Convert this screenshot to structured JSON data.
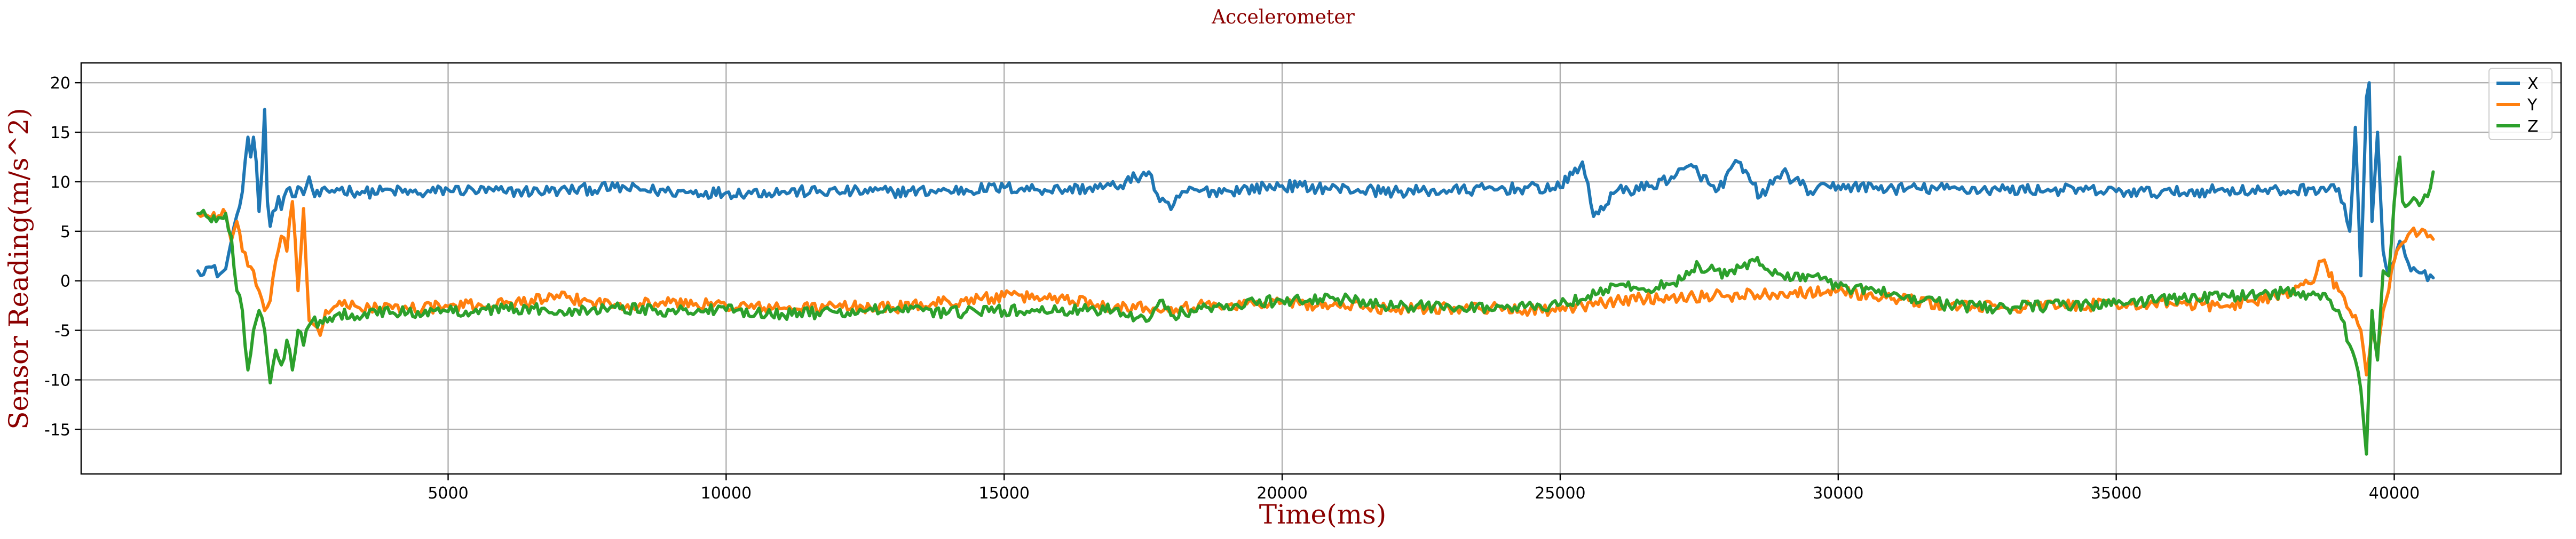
{
  "chart_data": {
    "type": "line",
    "title": "Accelerometer",
    "xlabel": "Time(ms)",
    "ylabel": "Sensor Reading(m/s^2)",
    "xlim": [
      -1600,
      43000
    ],
    "ylim": [
      -19.5,
      22
    ],
    "xticks": [
      5000,
      10000,
      15000,
      20000,
      25000,
      30000,
      35000,
      40000
    ],
    "yticks": [
      -15,
      -10,
      -5,
      0,
      5,
      10,
      15,
      20
    ],
    "grid": true,
    "legend_position": "top-right",
    "colors": {
      "X": "#1f77b4",
      "Y": "#ff7f0e",
      "Z": "#2ca02c"
    },
    "series": [
      {
        "name": "X",
        "color": "#1f77b4",
        "points": [
          [
            500,
            1.0
          ],
          [
            700,
            1.4
          ],
          [
            900,
            0.7
          ],
          [
            1000,
            1.2
          ],
          [
            1100,
            4.0
          ],
          [
            1150,
            5.5
          ],
          [
            1250,
            7.5
          ],
          [
            1300,
            9.0
          ],
          [
            1400,
            14.5
          ],
          [
            1450,
            12.5
          ],
          [
            1500,
            14.5
          ],
          [
            1550,
            12.0
          ],
          [
            1600,
            7.0
          ],
          [
            1650,
            11.0
          ],
          [
            1700,
            17.3
          ],
          [
            1750,
            8.0
          ],
          [
            1800,
            5.5
          ],
          [
            1850,
            7.0
          ],
          [
            1950,
            8.5
          ],
          [
            2000,
            7.2
          ],
          [
            2100,
            9.2
          ],
          [
            2200,
            8.5
          ],
          [
            2300,
            9.5
          ],
          [
            2400,
            8.7
          ],
          [
            2500,
            10.5
          ],
          [
            2600,
            8.5
          ],
          [
            3000,
            9.3
          ],
          [
            3500,
            8.9
          ],
          [
            4000,
            9.1
          ],
          [
            4500,
            8.8
          ],
          [
            5000,
            9.2
          ],
          [
            6000,
            9.0
          ],
          [
            7000,
            9.1
          ],
          [
            8000,
            9.4
          ],
          [
            9000,
            9.0
          ],
          [
            10000,
            8.9
          ],
          [
            11000,
            9.0
          ],
          [
            12000,
            9.0
          ],
          [
            13000,
            9.0
          ],
          [
            14000,
            9.1
          ],
          [
            15000,
            9.4
          ],
          [
            16000,
            9.2
          ],
          [
            17000,
            9.5
          ],
          [
            17600,
            11.0
          ],
          [
            17800,
            8.0
          ],
          [
            18000,
            7.2
          ],
          [
            18200,
            9.0
          ],
          [
            19000,
            9.1
          ],
          [
            20000,
            9.6
          ],
          [
            21000,
            9.3
          ],
          [
            22000,
            9.0
          ],
          [
            23000,
            9.1
          ],
          [
            24000,
            9.3
          ],
          [
            25000,
            9.4
          ],
          [
            25400,
            12.0
          ],
          [
            25600,
            6.5
          ],
          [
            26000,
            9.0
          ],
          [
            26600,
            9.5
          ],
          [
            27000,
            10.5
          ],
          [
            27400,
            11.5
          ],
          [
            27800,
            9.0
          ],
          [
            28200,
            12.0
          ],
          [
            28600,
            8.5
          ],
          [
            29000,
            11.0
          ],
          [
            29500,
            9.0
          ],
          [
            30000,
            9.6
          ],
          [
            31000,
            9.3
          ],
          [
            32000,
            9.3
          ],
          [
            33000,
            9.2
          ],
          [
            34000,
            9.2
          ],
          [
            35000,
            9.0
          ],
          [
            36000,
            8.9
          ],
          [
            37000,
            9.2
          ],
          [
            38000,
            9.0
          ],
          [
            38500,
            9.3
          ],
          [
            39000,
            9.3
          ],
          [
            39200,
            5.0
          ],
          [
            39300,
            15.5
          ],
          [
            39400,
            0.5
          ],
          [
            39500,
            18.5
          ],
          [
            39550,
            20.0
          ],
          [
            39600,
            6.0
          ],
          [
            39700,
            15.0
          ],
          [
            39800,
            3.0
          ],
          [
            39900,
            0.5
          ],
          [
            40000,
            2.0
          ],
          [
            40100,
            4.0
          ],
          [
            40200,
            2.5
          ],
          [
            40300,
            1.0
          ],
          [
            40400,
            1.0
          ],
          [
            40500,
            0.8
          ],
          [
            40700,
            0.3
          ]
        ]
      },
      {
        "name": "Y",
        "color": "#ff7f0e",
        "points": [
          [
            500,
            6.8
          ],
          [
            700,
            6.5
          ],
          [
            1000,
            6.8
          ],
          [
            1100,
            4.0
          ],
          [
            1200,
            6.0
          ],
          [
            1300,
            3.0
          ],
          [
            1400,
            1.5
          ],
          [
            1500,
            1.0
          ],
          [
            1600,
            -1.0
          ],
          [
            1700,
            -3.0
          ],
          [
            1800,
            -2.0
          ],
          [
            1900,
            2.0
          ],
          [
            2000,
            4.5
          ],
          [
            2100,
            3.0
          ],
          [
            2200,
            8.0
          ],
          [
            2300,
            -1.0
          ],
          [
            2400,
            7.3
          ],
          [
            2500,
            -4.0
          ],
          [
            2600,
            -4.5
          ],
          [
            2700,
            -5.5
          ],
          [
            2800,
            -3.0
          ],
          [
            3000,
            -2.5
          ],
          [
            4000,
            -2.8
          ],
          [
            5000,
            -2.6
          ],
          [
            6000,
            -2.3
          ],
          [
            7000,
            -1.7
          ],
          [
            8000,
            -2.4
          ],
          [
            9000,
            -2.2
          ],
          [
            10000,
            -2.5
          ],
          [
            11000,
            -2.8
          ],
          [
            12000,
            -2.6
          ],
          [
            13000,
            -2.7
          ],
          [
            14000,
            -2.1
          ],
          [
            15000,
            -1.6
          ],
          [
            16000,
            -1.7
          ],
          [
            17000,
            -2.6
          ],
          [
            18000,
            -2.7
          ],
          [
            19000,
            -2.4
          ],
          [
            20000,
            -2.2
          ],
          [
            21000,
            -2.5
          ],
          [
            22000,
            -2.8
          ],
          [
            23000,
            -2.7
          ],
          [
            24000,
            -2.8
          ],
          [
            25000,
            -3.0
          ],
          [
            26000,
            -2.0
          ],
          [
            27000,
            -1.6
          ],
          [
            28000,
            -1.5
          ],
          [
            29000,
            -1.2
          ],
          [
            30000,
            -1.0
          ],
          [
            31000,
            -1.8
          ],
          [
            32000,
            -2.5
          ],
          [
            33000,
            -2.7
          ],
          [
            34000,
            -2.5
          ],
          [
            35000,
            -2.4
          ],
          [
            36000,
            -2.3
          ],
          [
            37000,
            -2.5
          ],
          [
            38000,
            -1.3
          ],
          [
            38500,
            -0.3
          ],
          [
            38700,
            2.0
          ],
          [
            39000,
            -1.0
          ],
          [
            39200,
            -3.0
          ],
          [
            39300,
            -3.5
          ],
          [
            39400,
            -5.0
          ],
          [
            39500,
            -9.5
          ],
          [
            39600,
            -5.0
          ],
          [
            39700,
            -7.5
          ],
          [
            39800,
            -3.0
          ],
          [
            39900,
            -1.0
          ],
          [
            40000,
            2.0
          ],
          [
            40100,
            3.5
          ],
          [
            40200,
            4.0
          ],
          [
            40300,
            5.0
          ],
          [
            40400,
            4.5
          ],
          [
            40500,
            5.2
          ],
          [
            40700,
            4.2
          ]
        ]
      },
      {
        "name": "Z",
        "color": "#2ca02c",
        "points": [
          [
            500,
            6.8
          ],
          [
            700,
            6.3
          ],
          [
            1000,
            6.8
          ],
          [
            1100,
            4.5
          ],
          [
            1200,
            -1.0
          ],
          [
            1300,
            -3.0
          ],
          [
            1400,
            -9.0
          ],
          [
            1500,
            -5.0
          ],
          [
            1600,
            -3.0
          ],
          [
            1700,
            -5.0
          ],
          [
            1800,
            -10.3
          ],
          [
            1900,
            -7.0
          ],
          [
            2000,
            -8.5
          ],
          [
            2100,
            -6.0
          ],
          [
            2200,
            -9.0
          ],
          [
            2300,
            -5.0
          ],
          [
            2400,
            -6.5
          ],
          [
            2500,
            -4.5
          ],
          [
            2700,
            -4.0
          ],
          [
            3000,
            -3.4
          ],
          [
            4000,
            -3.2
          ],
          [
            5000,
            -3.1
          ],
          [
            6000,
            -2.8
          ],
          [
            7000,
            -3.0
          ],
          [
            8000,
            -2.7
          ],
          [
            9000,
            -3.0
          ],
          [
            10000,
            -3.0
          ],
          [
            11000,
            -3.3
          ],
          [
            12000,
            -3.2
          ],
          [
            13000,
            -2.9
          ],
          [
            14000,
            -3.2
          ],
          [
            15000,
            -3.0
          ],
          [
            16000,
            -3.1
          ],
          [
            17000,
            -2.8
          ],
          [
            17600,
            -4.0
          ],
          [
            17800,
            -2.0
          ],
          [
            18000,
            -3.5
          ],
          [
            19000,
            -2.4
          ],
          [
            20000,
            -2.0
          ],
          [
            21000,
            -1.8
          ],
          [
            22000,
            -2.7
          ],
          [
            23000,
            -2.5
          ],
          [
            24000,
            -2.8
          ],
          [
            25000,
            -2.4
          ],
          [
            25500,
            -1.5
          ],
          [
            26000,
            -0.5
          ],
          [
            26500,
            -0.8
          ],
          [
            27000,
            -0.3
          ],
          [
            27500,
            1.5
          ],
          [
            28000,
            0.5
          ],
          [
            28500,
            2.0
          ],
          [
            29000,
            0.5
          ],
          [
            29500,
            0.5
          ],
          [
            30000,
            -0.7
          ],
          [
            31000,
            -1.2
          ],
          [
            32000,
            -2.5
          ],
          [
            33000,
            -2.7
          ],
          [
            34000,
            -2.5
          ],
          [
            35000,
            -2.3
          ],
          [
            36000,
            -1.8
          ],
          [
            37000,
            -1.6
          ],
          [
            38000,
            -1.2
          ],
          [
            38500,
            -1.4
          ],
          [
            38800,
            -1.8
          ],
          [
            39000,
            -3.0
          ],
          [
            39200,
            -6.5
          ],
          [
            39300,
            -8.0
          ],
          [
            39400,
            -11.0
          ],
          [
            39500,
            -17.5
          ],
          [
            39600,
            -3.0
          ],
          [
            39700,
            -8.0
          ],
          [
            39800,
            1.0
          ],
          [
            39900,
            0.5
          ],
          [
            40000,
            8.0
          ],
          [
            40100,
            12.5
          ],
          [
            40150,
            8.0
          ],
          [
            40200,
            7.5
          ],
          [
            40300,
            8.0
          ],
          [
            40500,
            8.0
          ],
          [
            40600,
            8.5
          ],
          [
            40700,
            11.0
          ]
        ]
      }
    ]
  }
}
